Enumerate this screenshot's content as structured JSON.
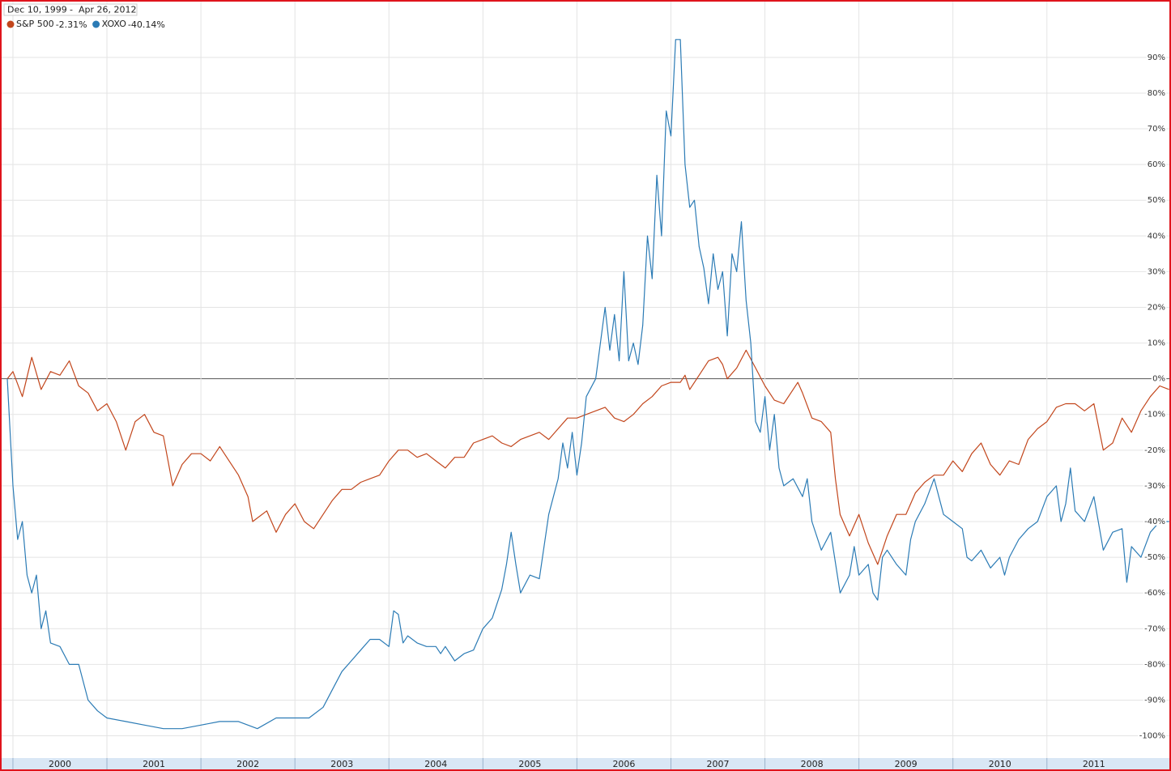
{
  "chart_data": {
    "type": "line",
    "date_range": {
      "start": "Dec 10, 1999",
      "separator": "-",
      "end": "Apr 26, 2012"
    },
    "xlim": [
      1999.94,
      2012.32
    ],
    "xticks": [
      2000,
      2001,
      2002,
      2003,
      2004,
      2005,
      2006,
      2007,
      2008,
      2009,
      2010,
      2011
    ],
    "ylim": [
      -106,
      97
    ],
    "yticks": [
      {
        "value": 90,
        "label": "90%"
      },
      {
        "value": 80,
        "label": "80%"
      },
      {
        "value": 70,
        "label": "70%"
      },
      {
        "value": 60,
        "label": "60%"
      },
      {
        "value": 50,
        "label": "50%"
      },
      {
        "value": 40,
        "label": "40%"
      },
      {
        "value": 30,
        "label": "30%"
      },
      {
        "value": 20,
        "label": "20%"
      },
      {
        "value": 10,
        "label": "10%"
      },
      {
        "value": 0,
        "label": "0%"
      },
      {
        "value": -10,
        "label": "-10%"
      },
      {
        "value": -20,
        "label": "-20%"
      },
      {
        "value": -30,
        "label": "-30%"
      },
      {
        "value": -40,
        "label": "-40%"
      },
      {
        "value": -50,
        "label": "-50%"
      },
      {
        "value": -60,
        "label": "-60%"
      },
      {
        "value": -70,
        "label": "-70%"
      },
      {
        "value": -80,
        "label": "-80%"
      },
      {
        "value": -90,
        "label": "-90%"
      },
      {
        "value": -100,
        "label": "-100%"
      }
    ],
    "grid": true,
    "series": [
      {
        "name": "S&P 500",
        "change_label": "-2.31%",
        "color": "#c2461c",
        "x": [
          1999.94,
          2000.0,
          2000.1,
          2000.2,
          2000.3,
          2000.4,
          2000.5,
          2000.6,
          2000.7,
          2000.8,
          2000.9,
          2001.0,
          2001.1,
          2001.2,
          2001.3,
          2001.4,
          2001.5,
          2001.6,
          2001.7,
          2001.8,
          2001.9,
          2002.0,
          2002.1,
          2002.2,
          2002.3,
          2002.4,
          2002.5,
          2002.55,
          2002.7,
          2002.8,
          2002.9,
          2003.0,
          2003.1,
          2003.2,
          2003.3,
          2003.4,
          2003.5,
          2003.6,
          2003.7,
          2003.8,
          2003.9,
          2004.0,
          2004.1,
          2004.2,
          2004.3,
          2004.4,
          2004.5,
          2004.6,
          2004.7,
          2004.8,
          2004.9,
          2005.0,
          2005.1,
          2005.2,
          2005.3,
          2005.4,
          2005.5,
          2005.6,
          2005.7,
          2005.8,
          2005.9,
          2006.0,
          2006.1,
          2006.2,
          2006.3,
          2006.4,
          2006.5,
          2006.6,
          2006.7,
          2006.8,
          2006.9,
          2007.0,
          2007.1,
          2007.15,
          2007.2,
          2007.3,
          2007.4,
          2007.5,
          2007.55,
          2007.6,
          2007.7,
          2007.8,
          2007.9,
          2008.0,
          2008.1,
          2008.2,
          2008.3,
          2008.35,
          2008.4,
          2008.5,
          2008.6,
          2008.7,
          2008.75,
          2008.8,
          2008.9,
          2009.0,
          2009.1,
          2009.2,
          2009.3,
          2009.4,
          2009.5,
          2009.6,
          2009.7,
          2009.8,
          2009.9,
          2010.0,
          2010.1,
          2010.2,
          2010.3,
          2010.4,
          2010.5,
          2010.6,
          2010.7,
          2010.8,
          2010.9,
          2011.0,
          2011.1,
          2011.2,
          2011.3,
          2011.4,
          2011.5,
          2011.6,
          2011.7,
          2011.8,
          2011.9,
          2012.0,
          2012.1,
          2012.2,
          2012.3
        ],
        "values": [
          0,
          2,
          -5,
          6,
          -3,
          2,
          1,
          5,
          -2,
          -4,
          -9,
          -7,
          -12,
          -20,
          -12,
          -10,
          -15,
          -16,
          -30,
          -24,
          -21,
          -21,
          -23,
          -19,
          -23,
          -27,
          -33,
          -40,
          -37,
          -43,
          -38,
          -35,
          -40,
          -42,
          -38,
          -34,
          -31,
          -31,
          -29,
          -28,
          -27,
          -23,
          -20,
          -20,
          -22,
          -21,
          -23,
          -25,
          -22,
          -22,
          -18,
          -17,
          -16,
          -18,
          -19,
          -17,
          -16,
          -15,
          -17,
          -14,
          -11,
          -11,
          -10,
          -9,
          -8,
          -11,
          -12,
          -10,
          -7,
          -5,
          -2,
          -1,
          -1,
          1,
          -3,
          1,
          5,
          6,
          4,
          0,
          3,
          8,
          3,
          -2,
          -6,
          -7,
          -3,
          -1,
          -4,
          -11,
          -12,
          -15,
          -28,
          -38,
          -44,
          -38,
          -46,
          -52,
          -44,
          -38,
          -38,
          -32,
          -29,
          -27,
          -27,
          -23,
          -26,
          -21,
          -18,
          -24,
          -27,
          -23,
          -24,
          -17,
          -14,
          -12,
          -8,
          -7,
          -7,
          -9,
          -7,
          -20,
          -18,
          -11,
          -15,
          -9,
          -5,
          -2,
          -3
        ]
      },
      {
        "name": "XOXO",
        "change_label": "-40.14%",
        "color": "#2b7bb5",
        "x": [
          1999.94,
          2000.0,
          2000.05,
          2000.1,
          2000.15,
          2000.2,
          2000.25,
          2000.3,
          2000.35,
          2000.4,
          2000.5,
          2000.6,
          2000.7,
          2000.8,
          2000.9,
          2001.0,
          2001.2,
          2001.4,
          2001.6,
          2001.8,
          2002.0,
          2002.2,
          2002.4,
          2002.6,
          2002.8,
          2003.0,
          2003.15,
          2003.3,
          2003.4,
          2003.5,
          2003.6,
          2003.7,
          2003.8,
          2003.9,
          2004.0,
          2004.05,
          2004.1,
          2004.15,
          2004.2,
          2004.3,
          2004.4,
          2004.5,
          2004.55,
          2004.6,
          2004.7,
          2004.8,
          2004.9,
          2005.0,
          2005.1,
          2005.2,
          2005.25,
          2005.3,
          2005.35,
          2005.4,
          2005.5,
          2005.6,
          2005.7,
          2005.8,
          2005.85,
          2005.9,
          2005.95,
          2006.0,
          2006.05,
          2006.1,
          2006.2,
          2006.3,
          2006.35,
          2006.4,
          2006.45,
          2006.5,
          2006.55,
          2006.6,
          2006.65,
          2006.7,
          2006.75,
          2006.8,
          2006.85,
          2006.9,
          2006.95,
          2007.0,
          2007.05,
          2007.1,
          2007.15,
          2007.2,
          2007.25,
          2007.3,
          2007.35,
          2007.4,
          2007.45,
          2007.5,
          2007.55,
          2007.6,
          2007.65,
          2007.7,
          2007.75,
          2007.8,
          2007.85,
          2007.9,
          2007.95,
          2008.0,
          2008.05,
          2008.1,
          2008.15,
          2008.2,
          2008.3,
          2008.4,
          2008.45,
          2008.5,
          2008.6,
          2008.7,
          2008.8,
          2008.9,
          2008.95,
          2009.0,
          2009.1,
          2009.15,
          2009.2,
          2009.25,
          2009.3,
          2009.4,
          2009.5,
          2009.55,
          2009.6,
          2009.7,
          2009.8,
          2009.9,
          2010.0,
          2010.1,
          2010.15,
          2010.2,
          2010.3,
          2010.4,
          2010.5,
          2010.55,
          2010.6,
          2010.7,
          2010.8,
          2010.9,
          2011.0,
          2011.1,
          2011.15,
          2011.2,
          2011.25,
          2011.3,
          2011.4,
          2011.5,
          2011.6,
          2011.7,
          2011.8,
          2011.85,
          2011.9,
          2012.0,
          2012.1,
          2012.2,
          2012.3
        ],
        "values": [
          0,
          -30,
          -45,
          -40,
          -55,
          -60,
          -55,
          -70,
          -65,
          -74,
          -75,
          -80,
          -80,
          -90,
          -93,
          -95,
          -96,
          -97,
          -98,
          -98,
          -97,
          -96,
          -96,
          -98,
          -95,
          -95,
          -95,
          -92,
          -87,
          -82,
          -79,
          -76,
          -73,
          -73,
          -75,
          -65,
          -66,
          -74,
          -72,
          -74,
          -75,
          -75,
          -77,
          -75,
          -79,
          -77,
          -76,
          -70,
          -67,
          -59,
          -52,
          -43,
          -52,
          -60,
          -55,
          -56,
          -38,
          -28,
          -18,
          -25,
          -15,
          -27,
          -18,
          -5,
          0,
          20,
          8,
          18,
          5,
          30,
          5,
          10,
          4,
          15,
          40,
          28,
          57,
          40,
          75,
          68,
          95,
          95,
          60,
          48,
          50,
          37,
          31,
          21,
          35,
          25,
          30,
          12,
          35,
          30,
          44,
          22,
          10,
          -12,
          -15,
          -5,
          -20,
          -10,
          -25,
          -30,
          -28,
          -33,
          -28,
          -40,
          -48,
          -43,
          -60,
          -55,
          -47,
          -55,
          -52,
          -60,
          -62,
          -50,
          -48,
          -52,
          -55,
          -45,
          -40,
          -35,
          -28,
          -38,
          -40,
          -42,
          -50,
          -51,
          -48,
          -53,
          -50,
          -55,
          -50,
          -45,
          -42,
          -40,
          -33,
          -30,
          -40,
          -35,
          -25,
          -37,
          -40,
          -33,
          -48,
          -43,
          -42,
          -57,
          -47,
          -50,
          -43,
          -40,
          -40
        ]
      }
    ]
  }
}
